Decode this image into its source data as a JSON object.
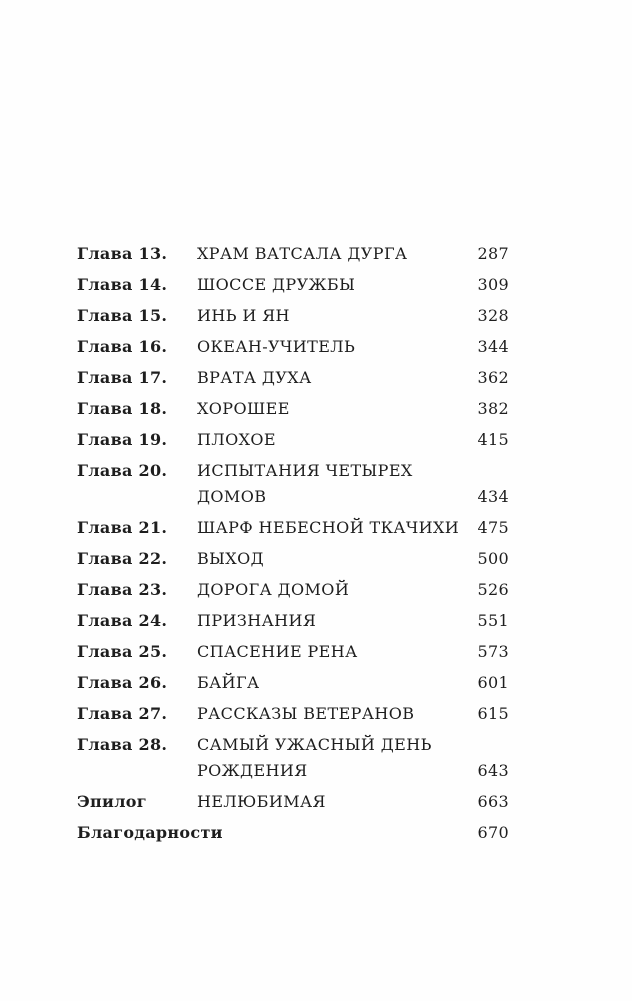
{
  "document": {
    "kind": "book-table-of-contents",
    "language": "ru"
  },
  "toc": {
    "entries": [
      {
        "label": "Глава 13.",
        "title": "ХРАМ ВАТСАЛА ДУРГА",
        "page": "287"
      },
      {
        "label": "Глава 14.",
        "title": "ШОССЕ ДРУЖБЫ",
        "page": "309"
      },
      {
        "label": "Глава 15.",
        "title": "ИНЬ И ЯН",
        "page": "328"
      },
      {
        "label": "Глава 16.",
        "title": "ОКЕАН-УЧИТЕЛЬ",
        "page": "344"
      },
      {
        "label": "Глава 17.",
        "title": "ВРАТА ДУХА",
        "page": "362"
      },
      {
        "label": "Глава 18.",
        "title": "ХОРОШЕЕ",
        "page": "382"
      },
      {
        "label": "Глава 19.",
        "title": "ПЛОХОЕ",
        "page": "415"
      },
      {
        "label": "Глава 20.",
        "title": "ИСПЫТАНИЯ ЧЕТЫРЕХ\nДОМОВ",
        "page": "434"
      },
      {
        "label": "Глава 21.",
        "title": "ШАРФ НЕБЕСНОЙ ТКАЧИХИ",
        "page": "475"
      },
      {
        "label": "Глава 22.",
        "title": "ВЫХОД",
        "page": "500"
      },
      {
        "label": "Глава 23.",
        "title": "ДОРОГА ДОМОЙ",
        "page": "526"
      },
      {
        "label": "Глава 24.",
        "title": "ПРИЗНАНИЯ",
        "page": "551"
      },
      {
        "label": "Глава 25.",
        "title": "СПАСЕНИЕ РЕНА",
        "page": "573"
      },
      {
        "label": "Глава 26.",
        "title": "БАЙГА",
        "page": "601"
      },
      {
        "label": "Глава 27.",
        "title": "РАССКАЗЫ ВЕТЕРАНОВ",
        "page": "615"
      },
      {
        "label": "Глава 28.",
        "title": "САМЫЙ УЖАСНЫЙ ДЕНЬ\nРОЖДЕНИЯ",
        "page": "643"
      },
      {
        "label": "Эпилог",
        "title": "НЕЛЮБИМАЯ",
        "page": "663"
      },
      {
        "label": "Благодарности",
        "title": "",
        "page": "670"
      }
    ]
  },
  "colors": {
    "text": "#1e1e1e",
    "background": "#fefefe"
  }
}
